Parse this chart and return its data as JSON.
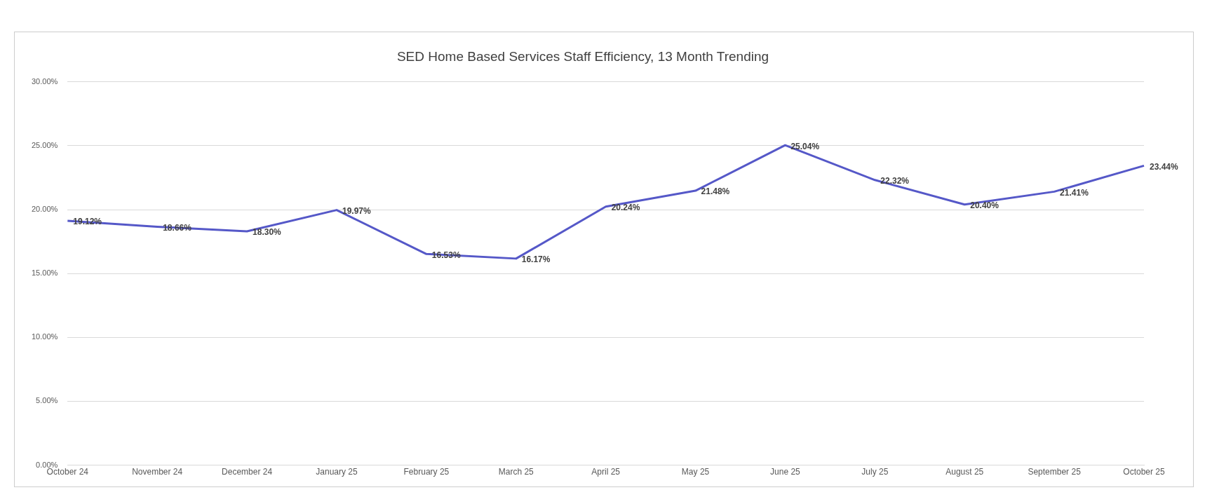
{
  "chart_data": {
    "type": "line",
    "title": "SED Home Based Services Staff Efficiency, 13 Month Trending",
    "categories": [
      "October 24",
      "November 24",
      "December 24",
      "January 25",
      "February 25",
      "March 25",
      "April 25",
      "May 25",
      "June 25",
      "July 25",
      "August 25",
      "September 25",
      "October 25"
    ],
    "values": [
      19.12,
      18.66,
      18.3,
      19.97,
      16.53,
      16.17,
      20.24,
      21.48,
      25.04,
      22.32,
      20.4,
      21.41,
      23.44
    ],
    "value_labels": [
      "19.12%",
      "18.66%",
      "18.30%",
      "19.97%",
      "16.53%",
      "16.17%",
      "20.24%",
      "21.48%",
      "25.04%",
      "22.32%",
      "20.40%",
      "21.41%",
      "23.44%"
    ],
    "color": "#5558c8",
    "ylim": [
      0,
      30
    ],
    "yticks": [
      {
        "value": 0,
        "label": "0.00%"
      },
      {
        "value": 5,
        "label": "5.00%"
      },
      {
        "value": 10,
        "label": "10.00%"
      },
      {
        "value": 15,
        "label": "15.00%"
      },
      {
        "value": 20,
        "label": "20.00%"
      },
      {
        "value": 25,
        "label": "25.00%"
      },
      {
        "value": 30,
        "label": "30.00%"
      }
    ],
    "grid": "y",
    "legend": false,
    "marker": "none"
  }
}
